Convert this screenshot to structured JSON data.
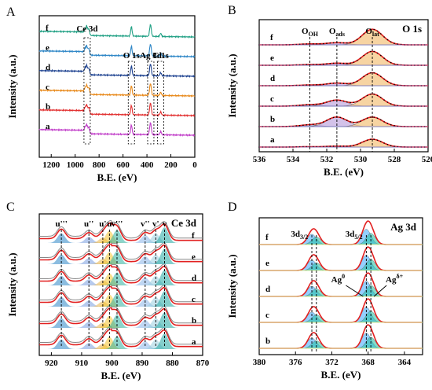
{
  "chart_data": [
    {
      "panel": "A",
      "type": "line",
      "xlabel": "B.E. (eV)",
      "ylabel": "Intensity (a.u.)",
      "xlim": [
        1300,
        0
      ],
      "xticks": [
        1200,
        1000,
        800,
        600,
        400,
        200,
        0
      ],
      "reversed_x": true,
      "grid": false,
      "series": [
        {
          "name": "a",
          "color": "#c03cc8",
          "offset": 0
        },
        {
          "name": "b",
          "color": "#e23030",
          "offset": 1
        },
        {
          "name": "c",
          "color": "#e88a1c",
          "offset": 2
        },
        {
          "name": "d",
          "color": "#1a3f8e",
          "offset": 3
        },
        {
          "name": "e",
          "color": "#2d86c6",
          "offset": 4
        },
        {
          "name": "f",
          "color": "#20a084",
          "offset": 5
        }
      ],
      "annotations": [
        {
          "text": "Ce 3d",
          "x": 900
        },
        {
          "text": "O 1s",
          "x": 530
        },
        {
          "text": "Ag 3d",
          "x": 368
        },
        {
          "text": "C 1s",
          "x": 285
        }
      ],
      "peaks": [
        {
          "x": 885,
          "h": 1.0
        },
        {
          "x": 900,
          "h": 1.2
        },
        {
          "x": 916,
          "h": 0.6
        },
        {
          "x": 530,
          "h": 1.5
        },
        {
          "x": 374,
          "h": 0.9
        },
        {
          "x": 368,
          "h": 1.2
        },
        {
          "x": 285,
          "h": 0.5
        }
      ]
    },
    {
      "panel": "B",
      "type": "line",
      "xlabel": "B.E. (eV)",
      "ylabel": "Intensity (a.u.)",
      "title": "O 1s",
      "xlim": [
        536,
        526
      ],
      "xticks": [
        536,
        534,
        532,
        530,
        528,
        526
      ],
      "reversed_x": true,
      "grid": false,
      "series": [
        "a",
        "b",
        "c",
        "d",
        "e",
        "f"
      ],
      "components": [
        {
          "name": "O_OH",
          "center": 533.0
        },
        {
          "name": "O_ads",
          "center": 531.4
        },
        {
          "name": "O_lat",
          "center": 529.3
        }
      ],
      "amplitudes": {
        "a": {
          "lat": 0.45,
          "ads": 0.05,
          "oh": 0.02
        },
        "b": {
          "lat": 0.55,
          "ads": 0.55,
          "oh": 0.1
        },
        "c": {
          "lat": 0.7,
          "ads": 0.35,
          "oh": 0.08
        },
        "d": {
          "lat": 0.75,
          "ads": 0.15,
          "oh": 0.04
        },
        "e": {
          "lat": 0.8,
          "ads": 0.12,
          "oh": 0.04
        },
        "f": {
          "lat": 0.9,
          "ads": 0.12,
          "oh": 0.05
        }
      },
      "annotations": [
        {
          "main": "O",
          "sub": "OH",
          "x": 533.0
        },
        {
          "main": "O",
          "sub": "ads",
          "x": 531.4
        },
        {
          "main": "O",
          "sub": "lat",
          "x": 529.3
        }
      ]
    },
    {
      "panel": "C",
      "type": "line",
      "xlabel": "B.E. (eV)",
      "ylabel": "Intensity (a.u.)",
      "title": "Ce 3d",
      "xlim": [
        924,
        870
      ],
      "xticks": [
        920,
        910,
        900,
        890,
        880,
        870
      ],
      "reversed_x": true,
      "grid": false,
      "series": [
        "a",
        "b",
        "c",
        "d",
        "e",
        "f"
      ],
      "peak_labels": [
        {
          "text": "u'''",
          "x": 916.7
        },
        {
          "text": "u''",
          "x": 907.6
        },
        {
          "text": "u'",
          "x": 903.0
        },
        {
          "text": "u",
          "x": 900.8
        },
        {
          "text": "v'''",
          "x": 898.3
        },
        {
          "text": "v''",
          "x": 889.0
        },
        {
          "text": "v'",
          "x": 885.5
        },
        {
          "text": "v",
          "x": 882.6
        }
      ]
    },
    {
      "panel": "D",
      "type": "line",
      "xlabel": "B.E. (eV)",
      "ylabel": "Intensity (a.u.)",
      "title": "Ag 3d",
      "xlim": [
        380,
        362
      ],
      "xticks": [
        380,
        376,
        372,
        368,
        364
      ],
      "reversed_x": true,
      "grid": false,
      "series": [
        "b",
        "c",
        "d",
        "e",
        "f"
      ],
      "components": [
        {
          "name": "Ag0",
          "center_5_2": 368.2,
          "center_3_2": 374.2
        },
        {
          "name": "Ag-delta+",
          "center_5_2": 367.7,
          "center_3_2": 373.7
        }
      ],
      "annotations": [
        {
          "main": "3d",
          "sub": "3/2",
          "x": 374.0
        },
        {
          "main": "3d",
          "sub": "5/2",
          "x": 368.0
        },
        {
          "main": "Ag",
          "sup": "0",
          "x": 368.2
        },
        {
          "main": "Ag",
          "sup": "δ+",
          "x": 367.7
        }
      ]
    }
  ]
}
